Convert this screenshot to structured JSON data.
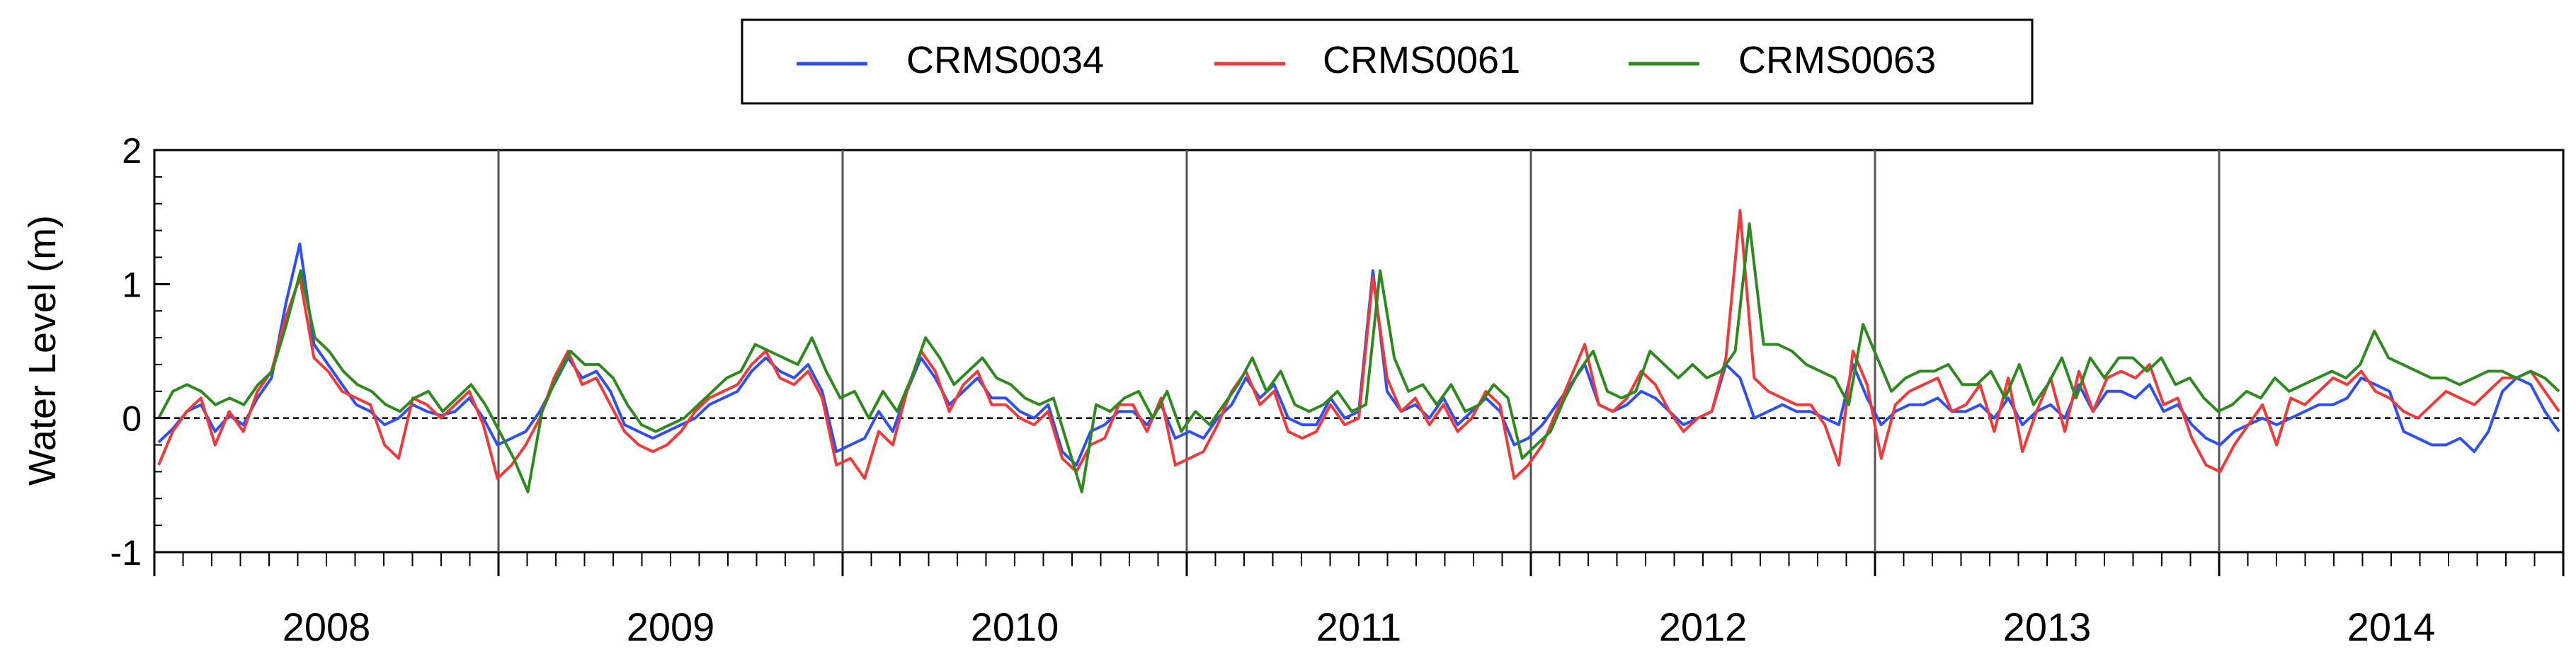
{
  "chart_data": {
    "type": "line",
    "title": "",
    "xlabel": "",
    "ylabel": "Water Level (m)",
    "ylim": [
      -1,
      2
    ],
    "yticks": [
      "2",
      "1",
      "0",
      "-1"
    ],
    "year_labels": [
      "2008",
      "2009",
      "2010",
      "2011",
      "2012",
      "2013",
      "2014"
    ],
    "x_range": [
      "2008-01",
      "2014-12"
    ],
    "grid": false,
    "reference_line": {
      "y": 0,
      "style": "dashed"
    },
    "legend": {
      "position": "top-center",
      "boxed": true
    },
    "series": [
      {
        "name": "CRMS0034",
        "color": "#2f4ff0",
        "values": [
          -0.18,
          -0.08,
          0.05,
          0.1,
          -0.1,
          0.02,
          -0.05,
          0.15,
          0.3,
          0.85,
          1.3,
          0.55,
          0.4,
          0.25,
          0.1,
          0.05,
          -0.05,
          0.0,
          0.1,
          0.05,
          0.02,
          0.05,
          0.15,
          0.0,
          -0.2,
          -0.15,
          -0.1,
          0.05,
          0.25,
          0.45,
          0.3,
          0.35,
          0.2,
          -0.05,
          -0.1,
          -0.15,
          -0.1,
          -0.05,
          0.0,
          0.1,
          0.15,
          0.2,
          0.35,
          0.45,
          0.35,
          0.3,
          0.4,
          0.2,
          -0.25,
          -0.2,
          -0.15,
          0.05,
          -0.1,
          0.2,
          0.45,
          0.3,
          0.1,
          0.2,
          0.3,
          0.15,
          0.15,
          0.05,
          0.0,
          0.1,
          -0.25,
          -0.35,
          -0.1,
          -0.05,
          0.05,
          0.05,
          -0.05,
          0.1,
          -0.15,
          -0.1,
          -0.15,
          0.0,
          0.1,
          0.3,
          0.15,
          0.25,
          0.0,
          -0.05,
          -0.05,
          0.15,
          0.0,
          0.05,
          1.1,
          0.2,
          0.05,
          0.1,
          0.0,
          0.15,
          -0.05,
          0.05,
          0.15,
          0.05,
          -0.2,
          -0.15,
          -0.05,
          0.1,
          0.25,
          0.4,
          0.1,
          0.05,
          0.1,
          0.2,
          0.15,
          0.05,
          -0.05,
          0.0,
          0.05,
          0.4,
          0.3,
          0.0,
          0.05,
          0.1,
          0.05,
          0.05,
          0.0,
          -0.05,
          0.4,
          0.15,
          -0.05,
          0.05,
          0.1,
          0.1,
          0.15,
          0.05,
          0.05,
          0.1,
          0.0,
          0.15,
          -0.05,
          0.05,
          0.1,
          0.0,
          0.25,
          0.05,
          0.2,
          0.2,
          0.15,
          0.25,
          0.05,
          0.1,
          -0.05,
          -0.15,
          -0.2,
          -0.1,
          -0.05,
          0.0,
          -0.05,
          0.0,
          0.05,
          0.1,
          0.1,
          0.15,
          0.3,
          0.25,
          0.2,
          -0.1,
          -0.15,
          -0.2,
          -0.2,
          -0.15,
          -0.25,
          -0.1,
          0.2,
          0.3,
          0.25,
          0.05,
          -0.1
        ]
      },
      {
        "name": "CRMS0061",
        "color": "#f03a3a",
        "values": [
          -0.35,
          -0.1,
          0.05,
          0.15,
          -0.2,
          0.05,
          -0.1,
          0.2,
          0.35,
          0.75,
          1.05,
          0.45,
          0.35,
          0.2,
          0.15,
          0.1,
          -0.2,
          -0.3,
          0.15,
          0.1,
          0.0,
          0.1,
          0.2,
          -0.05,
          -0.45,
          -0.35,
          -0.2,
          0.0,
          0.3,
          0.5,
          0.25,
          0.3,
          0.1,
          -0.1,
          -0.2,
          -0.25,
          -0.2,
          -0.1,
          0.05,
          0.15,
          0.2,
          0.25,
          0.4,
          0.5,
          0.3,
          0.25,
          0.35,
          0.15,
          -0.35,
          -0.3,
          -0.45,
          -0.1,
          -0.2,
          0.2,
          0.5,
          0.35,
          0.05,
          0.25,
          0.35,
          0.1,
          0.1,
          0.0,
          -0.05,
          0.05,
          -0.3,
          -0.4,
          -0.2,
          -0.15,
          0.1,
          0.1,
          -0.1,
          0.15,
          -0.35,
          -0.3,
          -0.25,
          -0.05,
          0.2,
          0.35,
          0.1,
          0.2,
          -0.1,
          -0.15,
          -0.1,
          0.1,
          -0.05,
          0.0,
          1.05,
          0.3,
          0.05,
          0.15,
          -0.05,
          0.1,
          -0.1,
          0.0,
          0.2,
          0.1,
          -0.45,
          -0.35,
          -0.2,
          0.05,
          0.3,
          0.55,
          0.1,
          0.05,
          0.15,
          0.35,
          0.25,
          0.05,
          -0.1,
          0.0,
          0.05,
          0.45,
          1.55,
          0.3,
          0.2,
          0.15,
          0.1,
          0.1,
          -0.05,
          -0.35,
          0.5,
          0.25,
          -0.3,
          0.1,
          0.2,
          0.25,
          0.3,
          0.05,
          0.1,
          0.25,
          -0.1,
          0.3,
          -0.25,
          0.05,
          0.3,
          -0.1,
          0.35,
          0.05,
          0.3,
          0.35,
          0.3,
          0.4,
          0.1,
          0.15,
          -0.15,
          -0.35,
          -0.4,
          -0.2,
          -0.05,
          0.1,
          -0.2,
          0.15,
          0.1,
          0.2,
          0.3,
          0.25,
          0.35,
          0.2,
          0.15,
          0.05,
          0.0,
          0.1,
          0.2,
          0.15,
          0.1,
          0.2,
          0.3,
          0.3,
          0.35,
          0.2,
          0.05
        ]
      },
      {
        "name": "CRMS0063",
        "color": "#2e8a1e",
        "values": [
          0.0,
          0.2,
          0.25,
          0.2,
          0.1,
          0.15,
          0.1,
          0.25,
          0.35,
          0.7,
          1.1,
          0.6,
          0.5,
          0.35,
          0.25,
          0.2,
          0.1,
          0.05,
          0.15,
          0.2,
          0.05,
          0.15,
          0.25,
          0.1,
          -0.1,
          -0.3,
          -0.55,
          0.05,
          0.3,
          0.5,
          0.4,
          0.4,
          0.3,
          0.1,
          -0.05,
          -0.1,
          -0.05,
          0.0,
          0.1,
          0.2,
          0.3,
          0.35,
          0.55,
          0.5,
          0.45,
          0.4,
          0.6,
          0.35,
          0.15,
          0.2,
          0.0,
          0.2,
          0.05,
          0.3,
          0.6,
          0.45,
          0.25,
          0.35,
          0.45,
          0.3,
          0.25,
          0.15,
          0.1,
          0.15,
          -0.2,
          -0.55,
          0.1,
          0.05,
          0.15,
          0.2,
          0.0,
          0.2,
          -0.1,
          0.05,
          -0.05,
          0.1,
          0.25,
          0.45,
          0.2,
          0.35,
          0.1,
          0.05,
          0.1,
          0.2,
          0.05,
          0.1,
          1.1,
          0.45,
          0.2,
          0.25,
          0.1,
          0.25,
          0.05,
          0.1,
          0.25,
          0.15,
          -0.3,
          -0.2,
          -0.1,
          0.15,
          0.35,
          0.5,
          0.2,
          0.15,
          0.2,
          0.5,
          0.4,
          0.3,
          0.4,
          0.3,
          0.35,
          0.5,
          1.45,
          0.55,
          0.55,
          0.5,
          0.4,
          0.35,
          0.3,
          0.1,
          0.7,
          0.45,
          0.2,
          0.3,
          0.35,
          0.35,
          0.4,
          0.25,
          0.25,
          0.35,
          0.15,
          0.4,
          0.1,
          0.25,
          0.45,
          0.15,
          0.45,
          0.3,
          0.45,
          0.45,
          0.35,
          0.45,
          0.25,
          0.3,
          0.15,
          0.05,
          0.1,
          0.2,
          0.15,
          0.3,
          0.2,
          0.25,
          0.3,
          0.35,
          0.3,
          0.4,
          0.65,
          0.45,
          0.4,
          0.35,
          0.3,
          0.3,
          0.25,
          0.3,
          0.35,
          0.35,
          0.3,
          0.35,
          0.3,
          0.2
        ]
      }
    ]
  }
}
